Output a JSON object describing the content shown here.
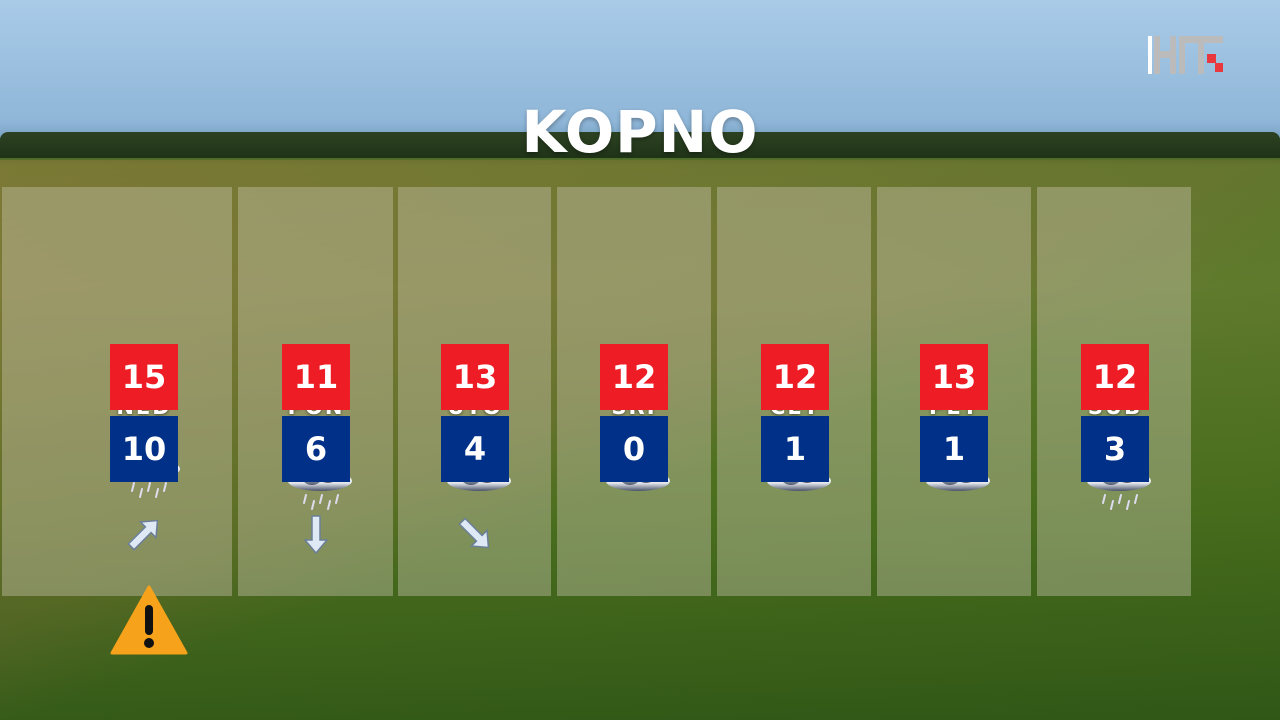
{
  "title": "KOPNO",
  "logo": "HRT",
  "colors": {
    "high": "#ee1c25",
    "low": "#003087",
    "warning": "#f7a21b"
  },
  "days": [
    {
      "label": "NED",
      "icon": "rain-cloud",
      "high": "15",
      "low": "10",
      "wind": "arrow-northeast"
    },
    {
      "label": "PON",
      "icon": "sun-cloud-rain",
      "high": "11",
      "low": "6",
      "wind": "arrow-south"
    },
    {
      "label": "UTO",
      "icon": "sun-cloud",
      "high": "13",
      "low": "4",
      "wind": "arrow-southeast"
    },
    {
      "label": "SRI",
      "icon": "sun-cloud",
      "high": "12",
      "low": "0",
      "wind": null
    },
    {
      "label": "ČET",
      "icon": "sun-cloud",
      "high": "12",
      "low": "1",
      "wind": null
    },
    {
      "label": "PET",
      "icon": "sun-cloud",
      "high": "13",
      "low": "1",
      "wind": null
    },
    {
      "label": "SUB",
      "icon": "sun-cloud-rain",
      "high": "12",
      "low": "3",
      "wind": null
    }
  ],
  "warning": {
    "icon": "warning-icon",
    "day": "NED"
  }
}
